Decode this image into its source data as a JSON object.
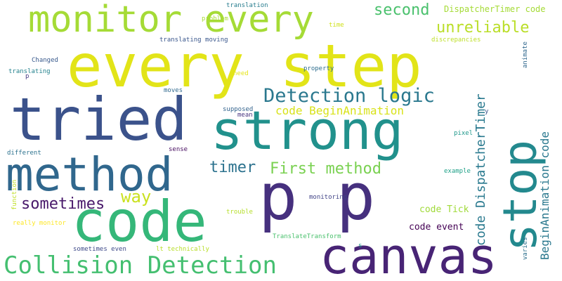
{
  "palette": {
    "background": "#ffffff",
    "dark_purple": "#46307e",
    "indigo": "#3b518b",
    "blue": "#2c6f8e",
    "teal": "#21918c",
    "green": "#27ad81",
    "mid_green": "#42be71",
    "light_green": "#7ad151",
    "lime": "#a0da39",
    "yellow": "#d8e219",
    "bright_yellow": "#e7e419"
  },
  "words": [
    {
      "text": "every step",
      "color": "#e2e418"
    },
    {
      "text": "strong",
      "color": "#21918c"
    },
    {
      "text": "tried",
      "color": "#3b528b"
    },
    {
      "text": "p p",
      "color": "#46307e"
    },
    {
      "text": "code",
      "color": "#35b779"
    },
    {
      "text": "canvas",
      "color": "#482475"
    },
    {
      "text": "method",
      "color": "#30678d"
    },
    {
      "text": "stop",
      "color": "#23898e"
    },
    {
      "text": "monitor every",
      "color": "#a5db36"
    },
    {
      "text": "Collision Detection",
      "color": "#44bf70"
    },
    {
      "text": "Detection logic",
      "color": "#2a788e"
    },
    {
      "text": "second",
      "color": "#4ac16d"
    },
    {
      "text": "unreliable",
      "color": "#bade28"
    },
    {
      "text": "DispatcherTimer code",
      "color": "#a5db36"
    },
    {
      "text": "timer",
      "color": "#2c728e"
    },
    {
      "text": "First method",
      "color": "#7ad151"
    },
    {
      "text": "sometimes",
      "color": "#48186a"
    },
    {
      "text": "way",
      "color": "#cae11f"
    },
    {
      "text": "code BeginAnimation",
      "color": "#d8e219"
    },
    {
      "text": "code DispatcherTimer",
      "color": "#29798e"
    },
    {
      "text": "BeginAnimation code",
      "color": "#2a788e"
    },
    {
      "text": "code Tick",
      "color": "#a0da39"
    },
    {
      "text": "code event",
      "color": "#440154"
    },
    {
      "text": "translation",
      "color": "#287d8e"
    },
    {
      "text": "problem",
      "color": "#a8db34"
    },
    {
      "text": "time",
      "color": "#d0e11c"
    },
    {
      "text": "discrepancies",
      "color": "#bddf26"
    },
    {
      "text": "translating moving",
      "color": "#39568c"
    },
    {
      "text": "animate",
      "color": "#31688e"
    },
    {
      "text": "Changed",
      "color": "#38598c"
    },
    {
      "text": "property",
      "color": "#2e6e8e"
    },
    {
      "text": "translating",
      "color": "#25838e"
    },
    {
      "text": "p",
      "color": "#443983"
    },
    {
      "text": "need",
      "color": "#e5e419"
    },
    {
      "text": "moves",
      "color": "#306a8e"
    },
    {
      "text": "supposed",
      "color": "#33638d"
    },
    {
      "text": "mean",
      "color": "#46337f"
    },
    {
      "text": "y",
      "color": "#3b528b"
    },
    {
      "text": "different",
      "color": "#2c728e"
    },
    {
      "text": "sense",
      "color": "#470d60"
    },
    {
      "text": "pixel",
      "color": "#1f988b"
    },
    {
      "text": "function",
      "color": "#c0df25"
    },
    {
      "text": "example",
      "color": "#1fa188"
    },
    {
      "text": "trouble",
      "color": "#b5de2b"
    },
    {
      "text": "monitoring",
      "color": "#414487"
    },
    {
      "text": "really monitor",
      "color": "#fde725"
    },
    {
      "text": "TranslateTransform",
      "color": "#4ac16d"
    },
    {
      "text": "sometimes even",
      "color": "#3e4989"
    },
    {
      "text": "lt technically",
      "color": "#b8de29"
    },
    {
      "text": "s",
      "color": "#1e9b8a"
    },
    {
      "text": "varies",
      "color": "#2d708e"
    }
  ]
}
